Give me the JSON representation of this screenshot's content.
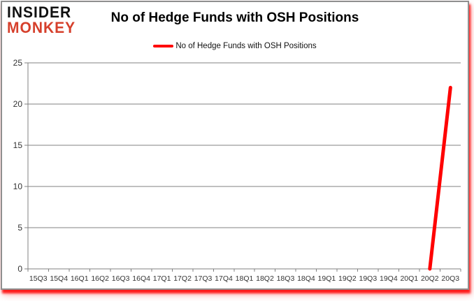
{
  "logo": {
    "line1": "INSIDER",
    "line2": "MONKEY"
  },
  "header": {
    "title": "No of Hedge Funds with OSH Positions"
  },
  "legend": {
    "label": "No of Hedge Funds with OSH Positions"
  },
  "chart_data": {
    "type": "line",
    "title": "No of Hedge Funds with OSH Positions",
    "categories": [
      "15Q3",
      "15Q4",
      "16Q1",
      "16Q2",
      "16Q3",
      "16Q4",
      "17Q1",
      "17Q2",
      "17Q3",
      "17Q4",
      "18Q1",
      "18Q2",
      "18Q3",
      "18Q4",
      "19Q1",
      "19Q2",
      "19Q3",
      "19Q4",
      "20Q1",
      "20Q2",
      "20Q3"
    ],
    "series": [
      {
        "name": "No of Hedge Funds with OSH Positions",
        "color": "#ff0000",
        "values": [
          null,
          null,
          null,
          null,
          null,
          null,
          null,
          null,
          null,
          null,
          null,
          null,
          null,
          null,
          null,
          null,
          null,
          null,
          null,
          0,
          22
        ]
      }
    ],
    "xlabel": "",
    "ylabel": "",
    "ylim": [
      0,
      25
    ],
    "yticks": [
      0,
      5,
      10,
      15,
      20,
      25
    ],
    "grid": true,
    "legend_position": "top-center"
  },
  "colors": {
    "line_red": "#ff0000",
    "logo_red": "#d6402c",
    "logo_black": "#111111",
    "grid": "#808080",
    "tick_label": "#333333",
    "frame_border": "#8f8f8f",
    "background": "#ffffff"
  }
}
